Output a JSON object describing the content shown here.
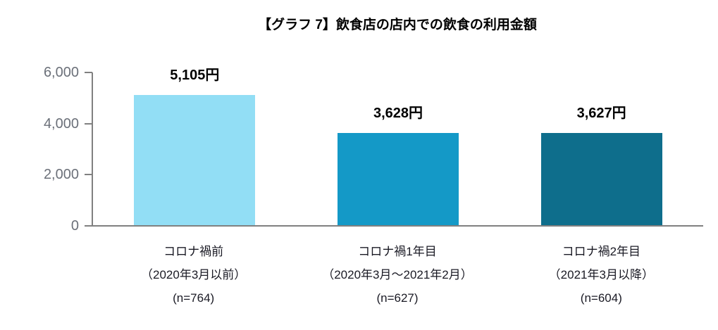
{
  "chart_data": {
    "type": "bar",
    "title": "【グラフ 7】飲食店の店内での飲食の利用金額",
    "xlabel": "",
    "ylabel": "",
    "ylim": [
      0,
      6000
    ],
    "yticks": [
      0,
      2000,
      4000,
      6000
    ],
    "ytick_labels": [
      "0",
      "2,000",
      "4,000",
      "6,000"
    ],
    "grid": false,
    "legend": "none",
    "axis_color": "#808080",
    "bars": [
      {
        "value": 5105,
        "value_label": "5,105円",
        "color": "#92def5",
        "category_lines": [
          "コロナ禍前",
          "（2020年3月以前）",
          "(n=764)"
        ]
      },
      {
        "value": 3628,
        "value_label": "3,628円",
        "color": "#1499c7",
        "category_lines": [
          "コロナ禍1年目",
          "（2020年3月～2021年2月）",
          "(n=627)"
        ]
      },
      {
        "value": 3627,
        "value_label": "3,627円",
        "color": "#0e6e8c",
        "category_lines": [
          "コロナ禍2年目",
          "（2021年3月以降）",
          "(n=604)"
        ]
      }
    ]
  }
}
